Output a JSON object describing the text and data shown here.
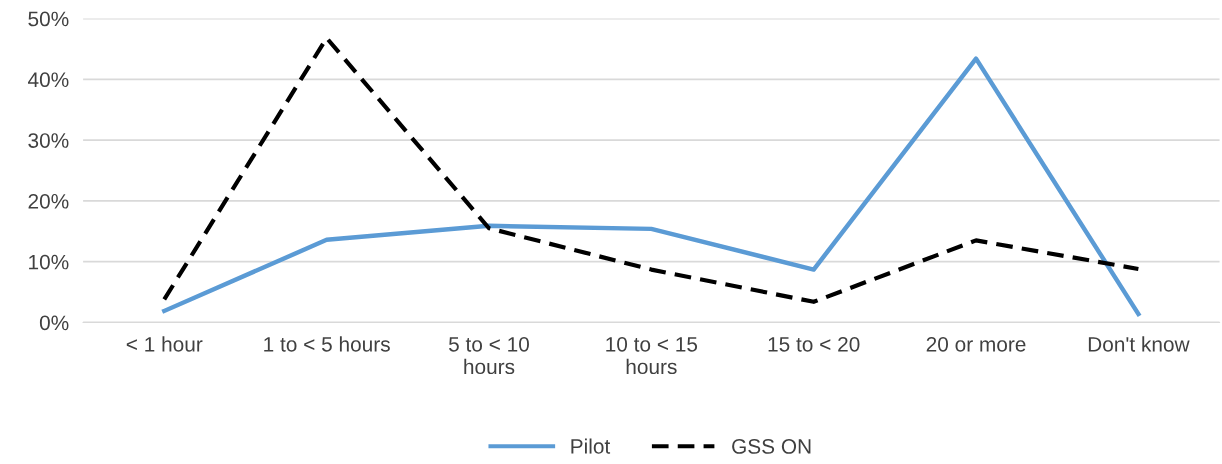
{
  "chart_data": {
    "type": "line",
    "categories": [
      "< 1 hour",
      "1 to < 5 hours",
      "5 to < 10\nhours",
      "10 to < 15\nhours",
      "15 to < 20",
      "20 or more",
      "Don't know"
    ],
    "series": [
      {
        "name": "Pilot",
        "color": "#5b9bd5",
        "line_style": "solid",
        "values": [
          1.9,
          13.6,
          15.9,
          15.4,
          8.7,
          43.4,
          1.4
        ]
      },
      {
        "name": "GSS ON",
        "color": "#000000",
        "line_style": "dashed",
        "values": [
          3.8,
          46.8,
          15.5,
          8.7,
          3.4,
          13.5,
          8.8
        ]
      }
    ],
    "ylim": [
      0,
      50
    ],
    "yticks": [
      {
        "value": 0,
        "label": "0%"
      },
      {
        "value": 10,
        "label": "10%"
      },
      {
        "value": 20,
        "label": "20%"
      },
      {
        "value": 30,
        "label": "30%"
      },
      {
        "value": 40,
        "label": "40%"
      },
      {
        "value": 50,
        "label": "50%"
      }
    ],
    "grid": "y",
    "legend": "bottom",
    "marker": "none"
  }
}
